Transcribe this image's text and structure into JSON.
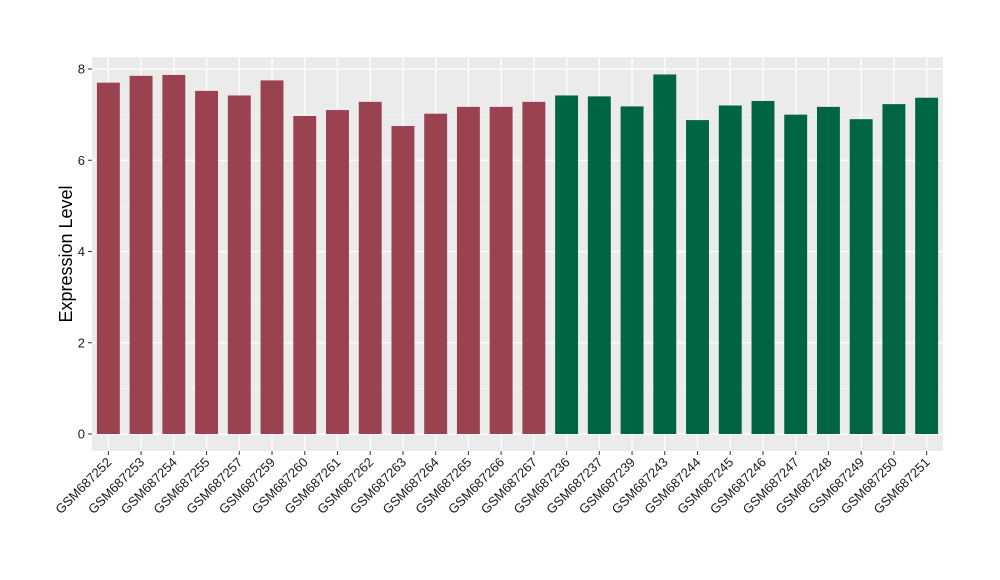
{
  "chart_data": {
    "type": "bar",
    "ylabel": "Expression Level",
    "xlabel": "",
    "title": "",
    "ylim": [
      0,
      8.2
    ],
    "yticks": [
      0,
      2,
      4,
      6,
      8
    ],
    "grid": true,
    "background": "#EBEBEB",
    "group_colors": [
      "#9A4250",
      "#006544"
    ],
    "categories": [
      "GSM687252",
      "GSM687253",
      "GSM687254",
      "GSM687255",
      "GSM687257",
      "GSM687259",
      "GSM687260",
      "GSM687261",
      "GSM687262",
      "GSM687263",
      "GSM687264",
      "GSM687265",
      "GSM687266",
      "GSM687267",
      "GSM687236",
      "GSM687237",
      "GSM687239",
      "GSM687243",
      "GSM687244",
      "GSM687245",
      "GSM687246",
      "GSM687247",
      "GSM687248",
      "GSM687249",
      "GSM687250",
      "GSM687251"
    ],
    "values": [
      7.7,
      7.85,
      7.87,
      7.52,
      7.42,
      7.75,
      6.97,
      7.1,
      7.28,
      6.75,
      7.02,
      7.17,
      7.17,
      7.28,
      7.42,
      7.4,
      7.18,
      7.88,
      6.88,
      7.2,
      7.3,
      7.0,
      7.17,
      6.9,
      7.23,
      7.37
    ],
    "groups": [
      0,
      0,
      0,
      0,
      0,
      0,
      0,
      0,
      0,
      0,
      0,
      0,
      0,
      0,
      1,
      1,
      1,
      1,
      1,
      1,
      1,
      1,
      1,
      1,
      1,
      1
    ]
  }
}
